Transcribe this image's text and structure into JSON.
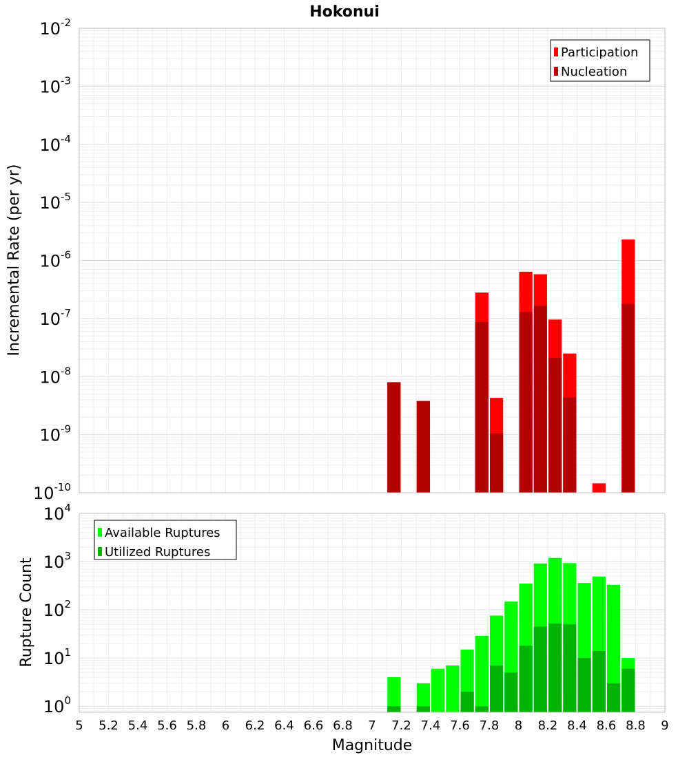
{
  "chart_data": [
    {
      "type": "bar",
      "title": "Hokonui",
      "xlabel": "",
      "ylabel": "Incremental Rate (per yr)",
      "x_range": [
        5,
        9
      ],
      "ylim": [
        1e-10,
        0.01
      ],
      "y_scale": "log",
      "y_tick_exponents": [
        "-2",
        "-3",
        "-4",
        "-5",
        "-6",
        "-7",
        "-8",
        "-9",
        "-10"
      ],
      "y_tick_base": "10",
      "grid": true,
      "legend_position": "top-right",
      "colors": {
        "participation": "#ff0000",
        "nucleation": "#b20000"
      },
      "series": [
        {
          "name": "Participation",
          "points": [
            {
              "x": 7.15,
              "y": 8e-09
            },
            {
              "x": 7.35,
              "y": 3.8e-09
            },
            {
              "x": 7.75,
              "y": 2.8e-07
            },
            {
              "x": 7.85,
              "y": 4.3e-09
            },
            {
              "x": 8.05,
              "y": 6.4e-07
            },
            {
              "x": 8.15,
              "y": 5.8e-07
            },
            {
              "x": 8.25,
              "y": 9.6e-08
            },
            {
              "x": 8.35,
              "y": 2.5e-08
            },
            {
              "x": 8.55,
              "y": 1.45e-10
            },
            {
              "x": 8.75,
              "y": 2.3e-06
            }
          ]
        },
        {
          "name": "Nucleation",
          "points": [
            {
              "x": 7.15,
              "y": 8e-09
            },
            {
              "x": 7.35,
              "y": 3.8e-09
            },
            {
              "x": 7.75,
              "y": 8.7e-08
            },
            {
              "x": 7.85,
              "y": 1.05e-09
            },
            {
              "x": 8.05,
              "y": 1.3e-07
            },
            {
              "x": 8.15,
              "y": 1.65e-07
            },
            {
              "x": 8.25,
              "y": 2.1e-08
            },
            {
              "x": 8.35,
              "y": 4.4e-09
            },
            {
              "x": 8.75,
              "y": 1.8e-07
            }
          ]
        }
      ]
    },
    {
      "type": "bar",
      "title": "",
      "xlabel": "Magnitude",
      "ylabel": "Rupture Count",
      "x_range": [
        5,
        9
      ],
      "ylim": [
        0.75,
        10000
      ],
      "y_scale": "log",
      "y_tick_exponents": [
        "4",
        "3",
        "2",
        "1",
        "0"
      ],
      "y_tick_base": "10",
      "x_ticks": [
        "5",
        "5.2",
        "5.4",
        "5.6",
        "5.8",
        "6",
        "6.2",
        "6.4",
        "6.6",
        "6.8",
        "7",
        "7.2",
        "7.4",
        "7.6",
        "7.8",
        "8",
        "8.2",
        "8.4",
        "8.6",
        "8.8",
        "9"
      ],
      "grid": true,
      "legend_position": "top-left",
      "colors": {
        "available": "#00ff00",
        "utilized": "#00b200"
      },
      "series": [
        {
          "name": "Available Ruptures",
          "points": [
            {
              "x": 7.15,
              "y": 4
            },
            {
              "x": 7.35,
              "y": 3
            },
            {
              "x": 7.45,
              "y": 6
            },
            {
              "x": 7.55,
              "y": 7
            },
            {
              "x": 7.65,
              "y": 15
            },
            {
              "x": 7.75,
              "y": 29
            },
            {
              "x": 7.85,
              "y": 76
            },
            {
              "x": 7.95,
              "y": 148
            },
            {
              "x": 8.05,
              "y": 350
            },
            {
              "x": 8.15,
              "y": 915
            },
            {
              "x": 8.25,
              "y": 1190
            },
            {
              "x": 8.35,
              "y": 930
            },
            {
              "x": 8.45,
              "y": 360
            },
            {
              "x": 8.55,
              "y": 490
            },
            {
              "x": 8.65,
              "y": 330
            },
            {
              "x": 8.75,
              "y": 10
            }
          ]
        },
        {
          "name": "Utilized Ruptures",
          "points": [
            {
              "x": 7.15,
              "y": 1
            },
            {
              "x": 7.35,
              "y": 1
            },
            {
              "x": 7.65,
              "y": 2
            },
            {
              "x": 7.75,
              "y": 1
            },
            {
              "x": 7.85,
              "y": 7
            },
            {
              "x": 7.95,
              "y": 5
            },
            {
              "x": 8.05,
              "y": 18
            },
            {
              "x": 8.15,
              "y": 45
            },
            {
              "x": 8.25,
              "y": 52
            },
            {
              "x": 8.35,
              "y": 50
            },
            {
              "x": 8.45,
              "y": 10
            },
            {
              "x": 8.55,
              "y": 14
            },
            {
              "x": 8.65,
              "y": 3
            },
            {
              "x": 8.75,
              "y": 6
            }
          ]
        }
      ]
    }
  ]
}
